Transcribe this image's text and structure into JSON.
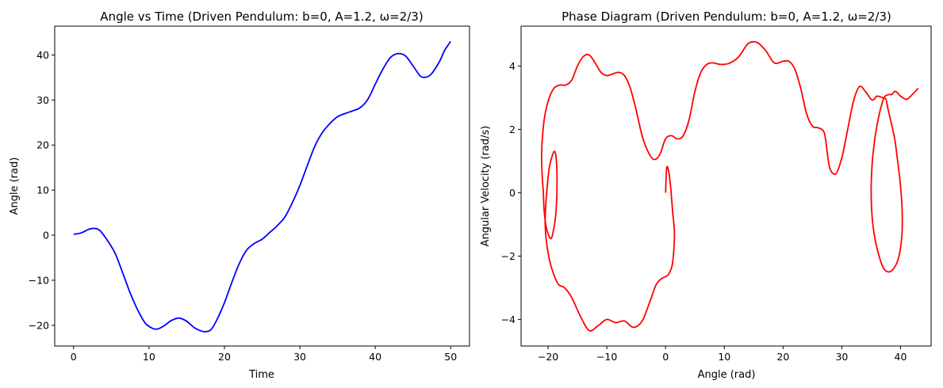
{
  "chart_data": [
    {
      "type": "line",
      "title": "Angle vs Time (Driven Pendulum: b=0, A=1.2, ω=2/3)",
      "xlabel": "Time",
      "ylabel": "Angle (rad)",
      "xlim": [
        -2.5,
        52.5
      ],
      "ylim": [
        -24.6,
        46.4
      ],
      "xticks": [
        0,
        10,
        20,
        30,
        40,
        50
      ],
      "yticks": [
        -20,
        -10,
        0,
        10,
        20,
        30,
        40
      ],
      "grid": false,
      "series": [
        {
          "color": "#0000ff",
          "x": [
            0,
            1,
            2,
            2.8,
            3.5,
            4.5,
            5.5,
            6.5,
            7.5,
            8.5,
            9.5,
            10.5,
            11.2,
            12,
            13,
            14,
            15,
            16,
            17,
            17.5,
            18.2,
            19,
            20,
            21,
            22,
            23,
            24,
            25,
            26,
            27,
            28,
            29,
            30,
            31,
            32,
            33,
            34,
            35,
            36,
            37,
            38,
            39,
            40,
            41,
            42,
            43,
            44,
            45,
            46,
            46.8,
            47.5,
            48.5,
            49.2,
            50
          ],
          "values": [
            0.2,
            0.5,
            1.3,
            1.5,
            1.0,
            -1.2,
            -4.0,
            -8.3,
            -12.8,
            -16.6,
            -19.5,
            -20.7,
            -20.8,
            -20.1,
            -18.9,
            -18.4,
            -19.1,
            -20.5,
            -21.3,
            -21.4,
            -21.0,
            -18.8,
            -15.0,
            -10.4,
            -6.2,
            -3.2,
            -1.8,
            -0.9,
            0.6,
            2.1,
            4.0,
            7.2,
            11.0,
            15.5,
            19.8,
            22.8,
            24.8,
            26.3,
            27.0,
            27.6,
            28.3,
            30.1,
            33.5,
            36.8,
            39.4,
            40.3,
            39.8,
            37.6,
            35.3,
            35.1,
            35.9,
            38.5,
            41.0,
            43.0
          ]
        }
      ]
    },
    {
      "type": "line",
      "title": "Phase Diagram (Driven Pendulum: b=0, A=1.2, ω=2/3)",
      "xlabel": "Angle (rad)",
      "ylabel": "Angular Velocity (rad/s)",
      "xlim": [
        -24.6,
        45.2
      ],
      "ylim": [
        -4.84,
        5.26
      ],
      "xticks": [
        -20,
        -10,
        0,
        10,
        20,
        30,
        40
      ],
      "yticks": [
        -4,
        -2,
        0,
        2,
        4
      ],
      "grid": false,
      "series": [
        {
          "color": "#ff0000",
          "x": [
            0.0,
            0.2,
            0.6,
            0.9,
            1.2,
            1.5,
            1.4,
            1.1,
            0.4,
            -0.6,
            -1.6,
            -2.6,
            -4.0,
            -5.5,
            -7.0,
            -8.5,
            -10.0,
            -11.5,
            -13.0,
            -14.5,
            -16.0,
            -17.2,
            -18.2,
            -19.0,
            -19.8,
            -20.3,
            -20.5,
            -20.4,
            -20.1,
            -19.8,
            -19.4,
            -19.0,
            -18.7,
            -18.5,
            -18.5,
            -18.7,
            -19.1,
            -19.5,
            -20.0,
            -20.4,
            -20.7,
            -20.8,
            -21.0,
            -21.1,
            -20.9,
            -20.5,
            -19.8,
            -19.0,
            -18.0,
            -17.0,
            -16.0,
            -15.0,
            -14.0,
            -13.0,
            -12.0,
            -11.0,
            -10.0,
            -9.0,
            -8.0,
            -7.0,
            -6.0,
            -5.0,
            -4.0,
            -3.0,
            -2.0,
            -1.0,
            0.0,
            1.0,
            2.0,
            3.0,
            4.0,
            5.0,
            6.0,
            7.0,
            8.0,
            9.5,
            11.0,
            12.5,
            14.0,
            15.5,
            17.0,
            18.5,
            20.0,
            21.0,
            22.0,
            23.0,
            24.0,
            25.0,
            26.0,
            27.0,
            27.5,
            28.0,
            29.0,
            30.0,
            31.0,
            32.0,
            33.0,
            34.0,
            35.0,
            35.5,
            36.0,
            37.0,
            37.5,
            37.8,
            38.3,
            39.0,
            39.5,
            39.9,
            40.2,
            40.3,
            40.1,
            39.6,
            38.8,
            37.9,
            37.0,
            36.2,
            35.5,
            35.1,
            35.0,
            35.2,
            35.7,
            36.4,
            37.2,
            38.0,
            38.5,
            39.0,
            39.5,
            40.0,
            41.0,
            42.0,
            43.0
          ],
          "values": [
            0.0,
            0.8,
            0.6,
            0.1,
            -0.6,
            -1.2,
            -1.8,
            -2.3,
            -2.6,
            -2.7,
            -2.9,
            -3.4,
            -4.05,
            -4.25,
            -4.05,
            -4.1,
            -4.0,
            -4.2,
            -4.35,
            -3.9,
            -3.3,
            -3.0,
            -2.9,
            -2.6,
            -2.1,
            -1.5,
            -1.0,
            -0.4,
            0.3,
            0.8,
            1.1,
            1.3,
            1.2,
            0.7,
            0.0,
            -0.7,
            -1.2,
            -1.45,
            -1.3,
            -1.0,
            -0.5,
            0.0,
            0.5,
            1.2,
            1.9,
            2.5,
            3.0,
            3.3,
            3.4,
            3.4,
            3.55,
            4.0,
            4.3,
            4.35,
            4.1,
            3.8,
            3.7,
            3.75,
            3.8,
            3.7,
            3.3,
            2.6,
            1.8,
            1.3,
            1.05,
            1.2,
            1.7,
            1.8,
            1.7,
            1.8,
            2.3,
            3.2,
            3.8,
            4.05,
            4.1,
            4.05,
            4.1,
            4.3,
            4.7,
            4.75,
            4.5,
            4.1,
            4.15,
            4.15,
            3.9,
            3.3,
            2.5,
            2.1,
            2.05,
            1.9,
            1.3,
            0.75,
            0.6,
            1.1,
            2.0,
            2.9,
            3.35,
            3.2,
            2.95,
            2.95,
            3.05,
            3.0,
            2.95,
            2.7,
            2.3,
            1.7,
            1.0,
            0.4,
            -0.3,
            -1.0,
            -1.6,
            -2.1,
            -2.4,
            -2.5,
            -2.35,
            -1.9,
            -1.3,
            -0.6,
            0.2,
            1.0,
            1.8,
            2.5,
            3.0,
            3.1,
            3.1,
            3.2,
            3.15,
            3.05,
            2.95,
            3.1,
            3.3
          ]
        }
      ]
    }
  ]
}
